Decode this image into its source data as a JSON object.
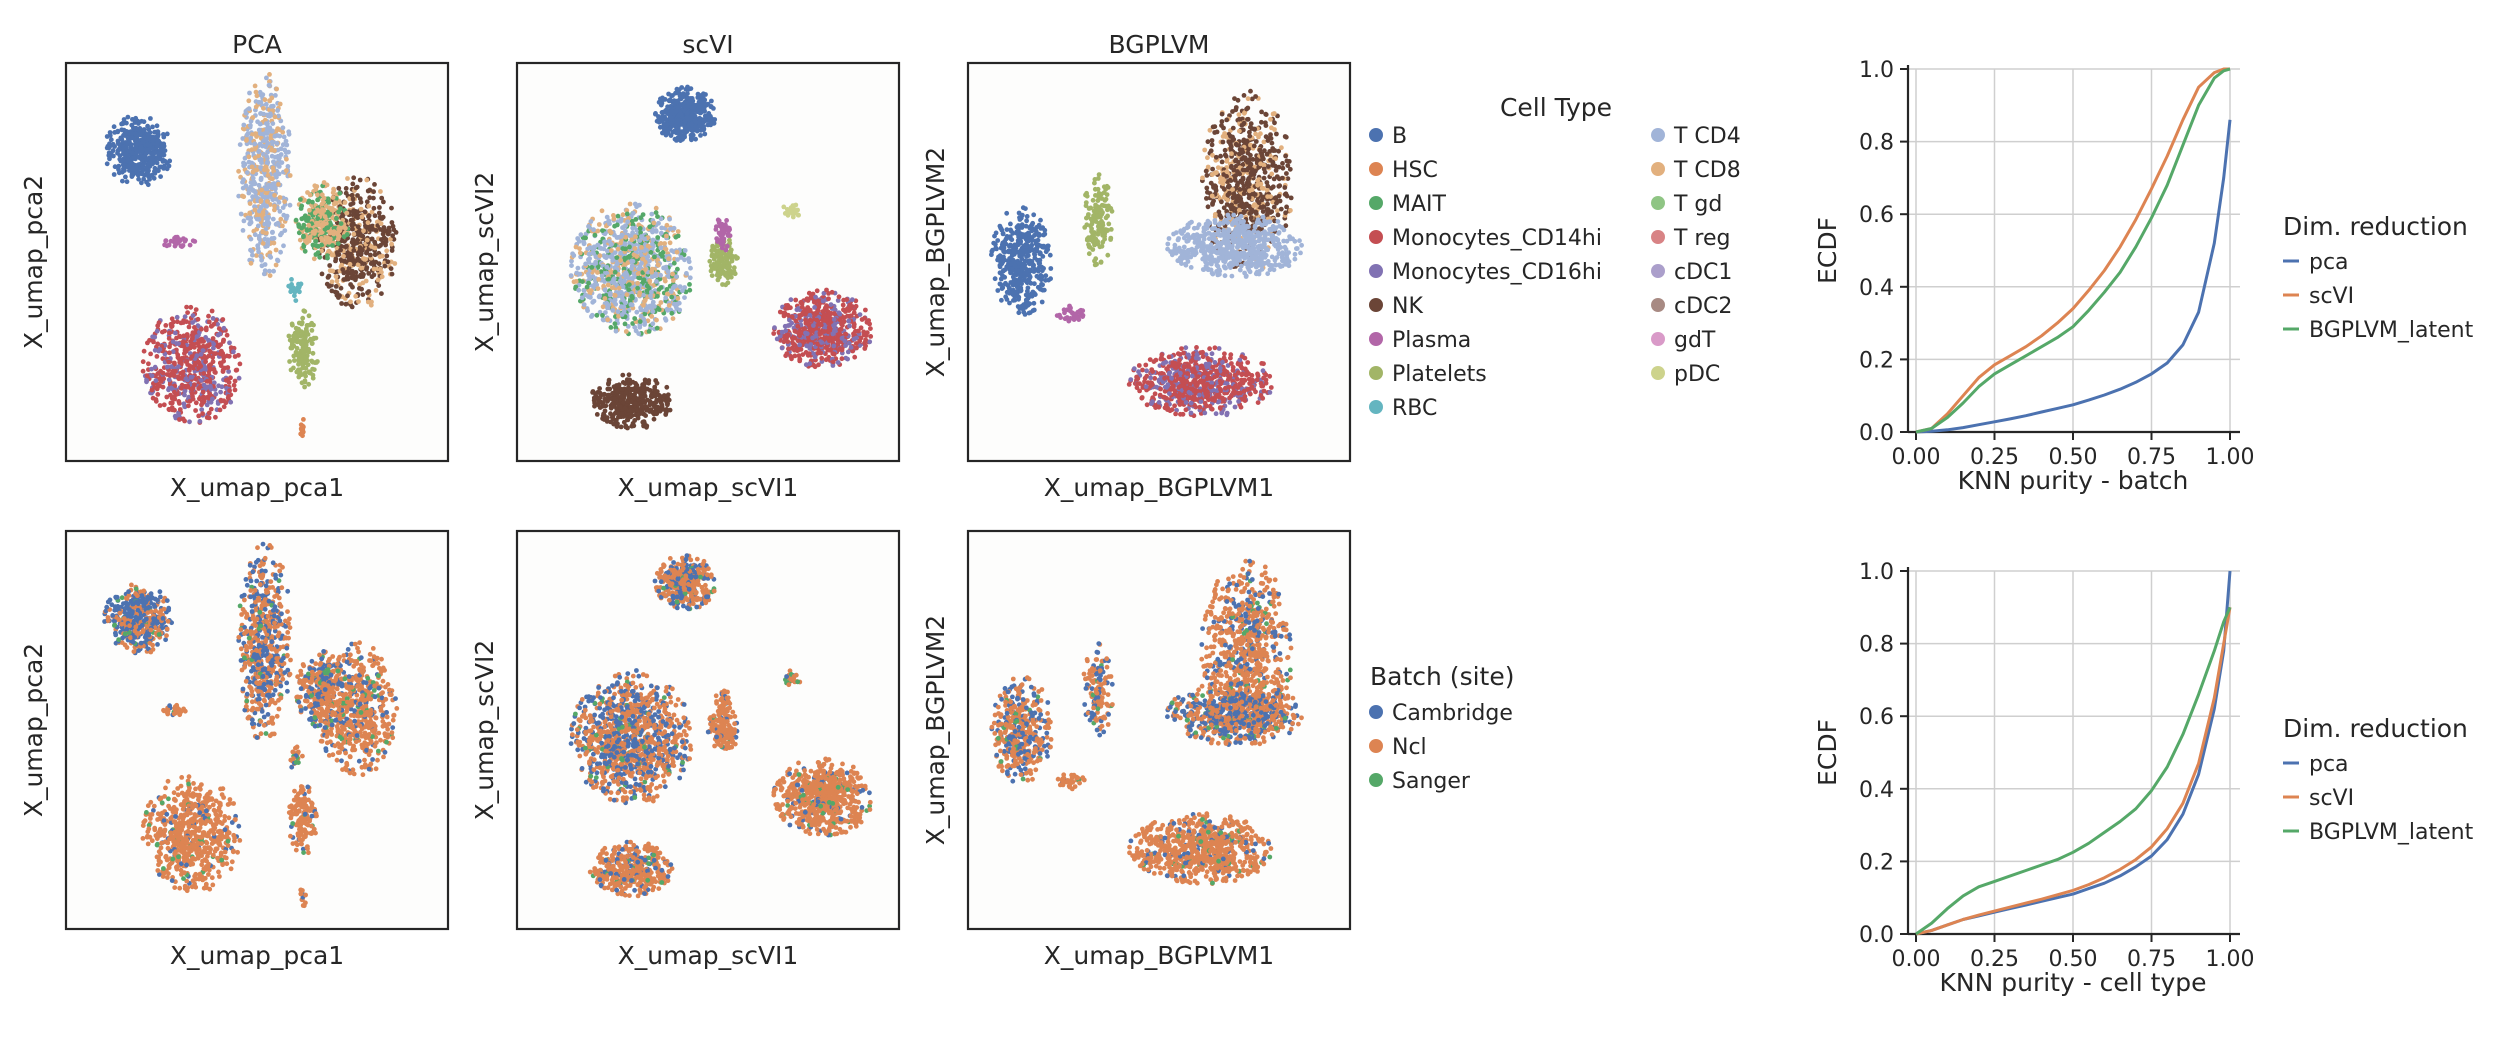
{
  "figure": {
    "cell_type_legend_title": "Cell Type",
    "batch_legend_title": "Batch (site)",
    "dimred_legend_title": "Dim. reduction"
  },
  "umap_panels": [
    {
      "id": "pca",
      "title": "PCA",
      "xlabel": "X_umap_pca1",
      "ylabel": "X_umap_pca2"
    },
    {
      "id": "scvi",
      "title": "scVI",
      "xlabel": "X_umap_scVI1",
      "ylabel": "X_umap_scVI2"
    },
    {
      "id": "bgplvm",
      "title": "BGPLVM",
      "xlabel": "X_umap_BGPLVM1",
      "ylabel": "X_umap_BGPLVM2"
    }
  ],
  "cell_types": [
    {
      "name": "B",
      "color": "#4c72b0"
    },
    {
      "name": "HSC",
      "color": "#dd8452"
    },
    {
      "name": "MAIT",
      "color": "#55a868"
    },
    {
      "name": "Monocytes_CD14hi",
      "color": "#c44e52"
    },
    {
      "name": "Monocytes_CD16hi",
      "color": "#8172b3"
    },
    {
      "name": "NK",
      "color": "#6b4537"
    },
    {
      "name": "Plasma",
      "color": "#b266a8"
    },
    {
      "name": "Platelets",
      "color": "#a2b567"
    },
    {
      "name": "RBC",
      "color": "#64b5c0"
    },
    {
      "name": "T CD4",
      "color": "#a1b4d8"
    },
    {
      "name": "T CD8",
      "color": "#e2b07e"
    },
    {
      "name": "T gd",
      "color": "#8fc584"
    },
    {
      "name": "T reg",
      "color": "#d88385"
    },
    {
      "name": "cDC1",
      "color": "#ab9fcb"
    },
    {
      "name": "cDC2",
      "color": "#a88a83"
    },
    {
      "name": "gdT",
      "color": "#d99ac8"
    },
    {
      "name": "pDC",
      "color": "#cdd38c"
    }
  ],
  "batches": [
    {
      "name": "Cambridge",
      "color": "#4c72b0"
    },
    {
      "name": "Ncl",
      "color": "#dd8452"
    },
    {
      "name": "Sanger",
      "color": "#55a868"
    }
  ],
  "chart_data": [
    {
      "type": "line",
      "title": "",
      "xlabel": "KNN purity - batch",
      "ylabel": "ECDF",
      "xlim": [
        0,
        1
      ],
      "ylim": [
        0,
        1
      ],
      "xticks": [
        "0.00",
        "0.25",
        "0.50",
        "0.75",
        "1.00"
      ],
      "yticks": [
        "0.0",
        "0.2",
        "0.4",
        "0.6",
        "0.8",
        "1.0"
      ],
      "grid": true,
      "legend": "right",
      "x": [
        0,
        0.05,
        0.1,
        0.15,
        0.2,
        0.25,
        0.3,
        0.35,
        0.4,
        0.45,
        0.5,
        0.55,
        0.6,
        0.65,
        0.7,
        0.75,
        0.8,
        0.85,
        0.9,
        0.95,
        0.98,
        1.0
      ],
      "series": [
        {
          "name": "pca",
          "color": "#4c72b0",
          "values": [
            0,
            0.002,
            0.006,
            0.012,
            0.02,
            0.028,
            0.036,
            0.045,
            0.055,
            0.065,
            0.075,
            0.088,
            0.102,
            0.118,
            0.137,
            0.16,
            0.19,
            0.24,
            0.33,
            0.52,
            0.7,
            0.86
          ]
        },
        {
          "name": "scVI",
          "color": "#dd8452",
          "values": [
            0,
            0.01,
            0.05,
            0.1,
            0.15,
            0.185,
            0.21,
            0.235,
            0.265,
            0.3,
            0.34,
            0.39,
            0.445,
            0.51,
            0.585,
            0.67,
            0.76,
            0.86,
            0.95,
            0.99,
            1.0,
            1.0
          ]
        },
        {
          "name": "BGPLVM_latent",
          "color": "#55a868",
          "values": [
            0,
            0.01,
            0.04,
            0.08,
            0.125,
            0.16,
            0.185,
            0.21,
            0.235,
            0.26,
            0.29,
            0.335,
            0.385,
            0.44,
            0.51,
            0.59,
            0.68,
            0.79,
            0.9,
            0.975,
            0.995,
            1.0
          ]
        }
      ]
    },
    {
      "type": "line",
      "title": "",
      "xlabel": "KNN purity - cell type",
      "ylabel": "ECDF",
      "xlim": [
        0,
        1
      ],
      "ylim": [
        0,
        1
      ],
      "xticks": [
        "0.00",
        "0.25",
        "0.50",
        "0.75",
        "1.00"
      ],
      "yticks": [
        "0.0",
        "0.2",
        "0.4",
        "0.6",
        "0.8",
        "1.0"
      ],
      "grid": true,
      "legend": "right",
      "x": [
        0,
        0.05,
        0.1,
        0.15,
        0.2,
        0.25,
        0.3,
        0.35,
        0.4,
        0.45,
        0.5,
        0.55,
        0.6,
        0.65,
        0.7,
        0.75,
        0.8,
        0.85,
        0.9,
        0.95,
        0.98,
        1.0
      ],
      "series": [
        {
          "name": "pca",
          "color": "#4c72b0",
          "values": [
            0,
            0.01,
            0.025,
            0.04,
            0.05,
            0.06,
            0.07,
            0.08,
            0.09,
            0.1,
            0.11,
            0.125,
            0.14,
            0.16,
            0.185,
            0.215,
            0.26,
            0.33,
            0.44,
            0.62,
            0.78,
            1.0
          ]
        },
        {
          "name": "scVI",
          "color": "#dd8452",
          "values": [
            0,
            0.01,
            0.025,
            0.04,
            0.052,
            0.063,
            0.074,
            0.085,
            0.096,
            0.108,
            0.12,
            0.136,
            0.155,
            0.178,
            0.205,
            0.24,
            0.29,
            0.36,
            0.47,
            0.65,
            0.8,
            0.9
          ]
        },
        {
          "name": "BGPLVM_latent",
          "color": "#55a868",
          "values": [
            0,
            0.03,
            0.07,
            0.105,
            0.13,
            0.145,
            0.16,
            0.175,
            0.19,
            0.205,
            0.225,
            0.25,
            0.28,
            0.31,
            0.345,
            0.395,
            0.46,
            0.55,
            0.66,
            0.78,
            0.86,
            0.9
          ]
        }
      ]
    }
  ]
}
